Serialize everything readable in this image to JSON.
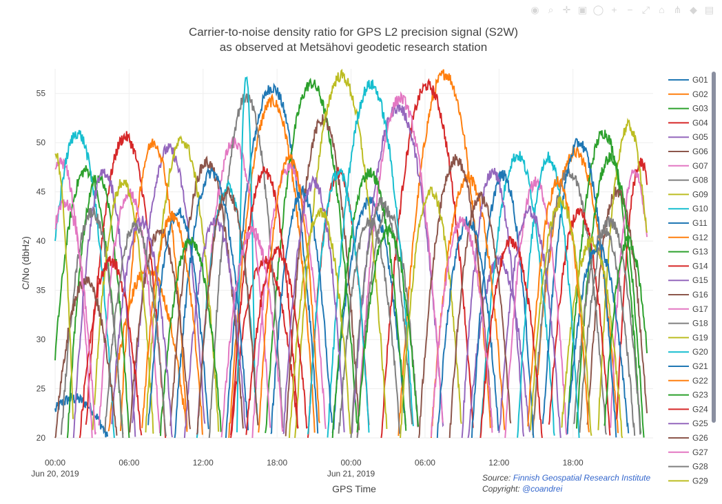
{
  "modebar": {
    "icons": [
      "camera-icon",
      "zoom-icon",
      "pan-icon",
      "box-select-icon",
      "lasso-icon",
      "zoom-in-icon",
      "zoom-out-icon",
      "autoscale-icon",
      "reset-axes-icon",
      "spike-lines-icon",
      "hover-closest-icon",
      "hover-compare-icon"
    ]
  },
  "credits": {
    "source_label": "Source: ",
    "source_link": "Finnish Geospatial Research Institute",
    "copyright_label": "Copyright: ",
    "copyright_link": "@coandrei"
  },
  "chart_data": {
    "type": "line",
    "title": "Carrier-to-noise density ratio for GPS L2 precision signal (S2W)",
    "subtitle": "as observed at Metsähovi geodetic research station",
    "xlabel": "GPS Time",
    "ylabel": "C/No (dbHz)",
    "x_unit": "hours since 2019-06-20 00:00",
    "xlim": [
      0,
      48.5
    ],
    "ylim": [
      20,
      57.5
    ],
    "x_ticks": [
      {
        "value": 0,
        "label": "00:00",
        "sublabel": "Jun 20, 2019"
      },
      {
        "value": 6,
        "label": "06:00",
        "sublabel": ""
      },
      {
        "value": 12,
        "label": "12:00",
        "sublabel": ""
      },
      {
        "value": 18,
        "label": "18:00",
        "sublabel": ""
      },
      {
        "value": 24,
        "label": "00:00",
        "sublabel": "Jun 21, 2019"
      },
      {
        "value": 30,
        "label": "06:00",
        "sublabel": ""
      },
      {
        "value": 36,
        "label": "12:00",
        "sublabel": ""
      },
      {
        "value": 42,
        "label": "18:00",
        "sublabel": ""
      }
    ],
    "y_ticks": [
      20,
      25,
      30,
      35,
      40,
      45,
      50,
      55
    ],
    "grid": true,
    "legend_position": "right",
    "series": [
      {
        "name": "G01",
        "color": "#1f77b4",
        "passes": [
          [
            1.5,
            5.5,
            24
          ],
          [
            17.6,
            7.5,
            55.6
          ],
          [
            25.5,
            6,
            44
          ]
        ]
      },
      {
        "name": "G02",
        "color": "#ff7f0e",
        "passes": [
          [
            7.5,
            6.5,
            37
          ],
          [
            17.6,
            7,
            54.2
          ],
          [
            31.6,
            7.5,
            57
          ],
          [
            42.2,
            7,
            49
          ]
        ]
      },
      {
        "name": "G03",
        "color": "#2ca02c",
        "passes": [
          [
            2.5,
            6,
            47.2
          ],
          [
            20.8,
            7.5,
            56
          ],
          [
            44.5,
            6,
            51
          ]
        ]
      },
      {
        "name": "G04",
        "color": "#d62728",
        "passes": [
          [
            5.7,
            6.5,
            50.6
          ],
          [
            17,
            5.5,
            38
          ],
          [
            30.2,
            7.5,
            55.8
          ],
          [
            47.5,
            4,
            48
          ]
        ]
      },
      {
        "name": "G05",
        "color": "#9467bd",
        "passes": [
          [
            9.2,
            6,
            49.4
          ],
          [
            27.8,
            7.5,
            53.6
          ],
          [
            36,
            5,
            38
          ]
        ]
      },
      {
        "name": "G06",
        "color": "#8c564b",
        "passes": [
          [
            12.3,
            6,
            48
          ],
          [
            21.7,
            6,
            52.3
          ],
          [
            45.6,
            5,
            45
          ]
        ]
      },
      {
        "name": "G07",
        "color": "#e377c2",
        "passes": [
          [
            0.5,
            5,
            48
          ],
          [
            14.5,
            6,
            50
          ],
          [
            28,
            7,
            54.5
          ],
          [
            47,
            4,
            47
          ]
        ]
      },
      {
        "name": "G08",
        "color": "#7f7f7f",
        "passes": [
          [
            15.5,
            6,
            54.6
          ],
          [
            27,
            5,
            43
          ],
          [
            41.7,
            6,
            47
          ]
        ]
      },
      {
        "name": "G09",
        "color": "#bcbd22",
        "passes": [
          [
            10.3,
            6,
            50.2
          ],
          [
            23.2,
            7.5,
            56.8
          ],
          [
            46.5,
            5,
            51.7
          ]
        ]
      },
      {
        "name": "G10",
        "color": "#17becf",
        "passes": [
          [
            1.8,
            6,
            51
          ],
          [
            15.5,
            1.5,
            56.5
          ],
          [
            25.6,
            7,
            55.9
          ],
          [
            37.5,
            6,
            48.7
          ]
        ]
      },
      {
        "name": "G11",
        "color": "#1f77b4",
        "passes": [
          [
            12.7,
            6,
            47
          ],
          [
            36.3,
            5,
            46.7
          ],
          [
            42.5,
            6,
            50
          ]
        ]
      },
      {
        "name": "G12",
        "color": "#ff7f0e",
        "passes": [
          [
            8,
            5.5,
            50
          ],
          [
            33.5,
            6,
            46.5
          ]
        ]
      },
      {
        "name": "G13",
        "color": "#2ca02c",
        "passes": [
          [
            3.5,
            5,
            46.5
          ],
          [
            25.5,
            6,
            47
          ],
          [
            45,
            5.5,
            48.5
          ]
        ]
      },
      {
        "name": "G14",
        "color": "#d62728",
        "passes": [
          [
            17,
            5.5,
            47
          ],
          [
            23,
            5,
            47
          ],
          [
            42.5,
            5,
            43
          ]
        ]
      },
      {
        "name": "G15",
        "color": "#9467bd",
        "passes": [
          [
            4,
            5,
            47
          ],
          [
            13,
            5,
            42
          ],
          [
            35.5,
            5,
            47
          ]
        ]
      },
      {
        "name": "G16",
        "color": "#8c564b",
        "passes": [
          [
            8.5,
            5,
            41
          ],
          [
            32.5,
            6,
            48.3
          ]
        ]
      },
      {
        "name": "G17",
        "color": "#e377c2",
        "passes": [
          [
            6,
            5,
            45
          ],
          [
            19,
            6,
            47.5
          ],
          [
            39,
            5,
            46
          ]
        ]
      },
      {
        "name": "G18",
        "color": "#7f7f7f",
        "passes": [
          [
            3,
            5,
            43
          ],
          [
            26.5,
            5,
            44
          ],
          [
            44.5,
            5,
            41
          ]
        ]
      },
      {
        "name": "G19",
        "color": "#bcbd22",
        "passes": [
          [
            5.5,
            5,
            46
          ],
          [
            30.5,
            5,
            45
          ],
          [
            43.5,
            5,
            40
          ]
        ]
      },
      {
        "name": "G20",
        "color": "#17becf",
        "passes": [
          [
            14,
            5,
            45.5
          ],
          [
            23,
            5,
            47
          ],
          [
            40,
            5,
            48.5
          ]
        ]
      },
      {
        "name": "G21",
        "color": "#1f77b4",
        "passes": [
          [
            10,
            5,
            43
          ],
          [
            20,
            5,
            45
          ],
          [
            33.5,
            5,
            42
          ],
          [
            44,
            5,
            39.5
          ]
        ]
      },
      {
        "name": "G22",
        "color": "#ff7f0e",
        "passes": [
          [
            9.5,
            5,
            42.5
          ],
          [
            19,
            5,
            48.5
          ],
          [
            40.8,
            5,
            46
          ]
        ]
      },
      {
        "name": "G23",
        "color": "#2ca02c",
        "passes": [
          [
            11,
            5,
            40
          ],
          [
            27,
            5,
            41
          ],
          [
            46.5,
            4,
            40
          ]
        ]
      },
      {
        "name": "G24",
        "color": "#d62728",
        "passes": [
          [
            4.5,
            5,
            38
          ],
          [
            18,
            5,
            39
          ],
          [
            37,
            5,
            40
          ]
        ]
      },
      {
        "name": "G25",
        "color": "#9467bd",
        "passes": [
          [
            7,
            5,
            42
          ],
          [
            21,
            5,
            46
          ],
          [
            38.5,
            5,
            43
          ]
        ]
      },
      {
        "name": "G26",
        "color": "#8c564b",
        "passes": [
          [
            2.5,
            5,
            36
          ],
          [
            14,
            5,
            45
          ],
          [
            34.5,
            5,
            44.5
          ]
        ]
      },
      {
        "name": "G27",
        "color": "#e377c2",
        "passes": [
          [
            0.8,
            5,
            44
          ],
          [
            16,
            5,
            41
          ],
          [
            33,
            5,
            42
          ]
        ]
      },
      {
        "name": "G28",
        "color": "#7f7f7f",
        "passes": [
          [
            6.5,
            5,
            41.5
          ],
          [
            25.5,
            5,
            42
          ],
          [
            45,
            5,
            42
          ]
        ]
      },
      {
        "name": "G29",
        "color": "#bcbd22",
        "passes": [
          [
            0,
            3,
            49
          ],
          [
            21.5,
            5,
            43
          ],
          [
            41,
            5,
            44
          ]
        ]
      }
    ]
  }
}
